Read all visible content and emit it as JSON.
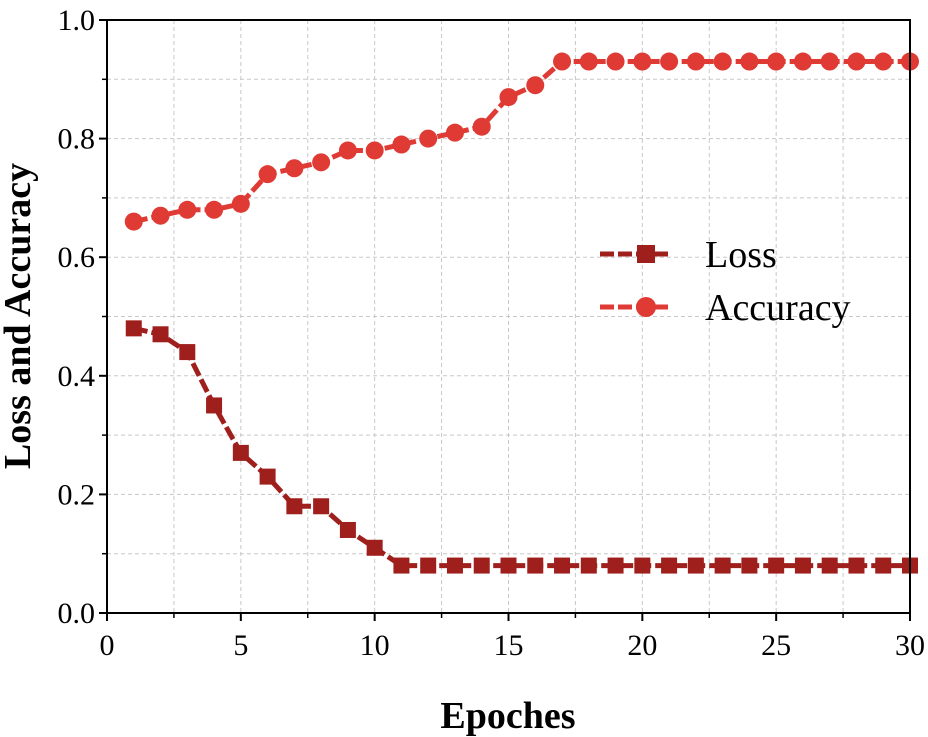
{
  "chart_data": {
    "type": "line",
    "title": "",
    "xlabel": "Epoches",
    "ylabel": "Loss and Accuracy",
    "xlim": [
      0,
      30
    ],
    "ylim": [
      0.0,
      1.0
    ],
    "xticks": [
      "0",
      "5",
      "10",
      "15",
      "20",
      "25",
      "30"
    ],
    "yticks": [
      "0.0",
      "0.2",
      "0.4",
      "0.6",
      "0.8",
      "1.0"
    ],
    "grid": true,
    "legend_position": "right-middle",
    "x": [
      1,
      2,
      3,
      4,
      5,
      6,
      7,
      8,
      9,
      10,
      11,
      12,
      13,
      14,
      15,
      16,
      17,
      18,
      19,
      20,
      21,
      22,
      23,
      24,
      25,
      26,
      27,
      28,
      29,
      30
    ],
    "series": [
      {
        "name": "Loss",
        "marker": "square",
        "color": "#9e1f1c",
        "values": [
          0.48,
          0.47,
          0.44,
          0.35,
          0.27,
          0.23,
          0.18,
          0.18,
          0.14,
          0.11,
          0.08,
          0.08,
          0.08,
          0.08,
          0.08,
          0.08,
          0.08,
          0.08,
          0.08,
          0.08,
          0.08,
          0.08,
          0.08,
          0.08,
          0.08,
          0.08,
          0.08,
          0.08,
          0.08,
          0.08
        ]
      },
      {
        "name": "Accuracy",
        "marker": "circle",
        "color": "#e03a34",
        "values": [
          0.66,
          0.67,
          0.68,
          0.68,
          0.69,
          0.74,
          0.75,
          0.76,
          0.78,
          0.78,
          0.79,
          0.8,
          0.81,
          0.82,
          0.87,
          0.89,
          0.93,
          0.93,
          0.93,
          0.93,
          0.93,
          0.93,
          0.93,
          0.93,
          0.93,
          0.93,
          0.93,
          0.93,
          0.93,
          0.93
        ]
      }
    ]
  }
}
